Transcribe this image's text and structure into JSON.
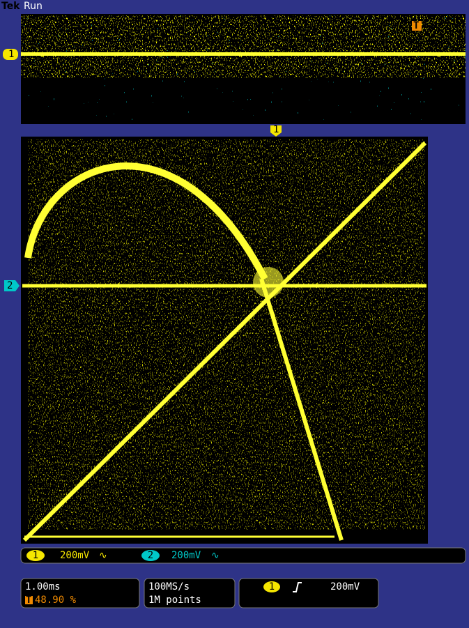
{
  "header": {
    "brand": "Tek",
    "status": "Run"
  },
  "markers": {
    "ch1_waveform": "1",
    "trigger_position": "T",
    "ch1_top": "1",
    "ch2_xy": "2"
  },
  "channels": [
    {
      "number": "1",
      "scale": "200mV",
      "coupling": "∿"
    },
    {
      "number": "2",
      "scale": "200mV",
      "coupling": "∿"
    }
  ],
  "horizontal": {
    "scale": "1.00ms",
    "trigger_icon": "T",
    "position": "48.90 %"
  },
  "acquisition": {
    "sample_rate": "100MS/s",
    "record_length": "1M points"
  },
  "trigger": {
    "channel": "1",
    "level": "200mV"
  }
}
